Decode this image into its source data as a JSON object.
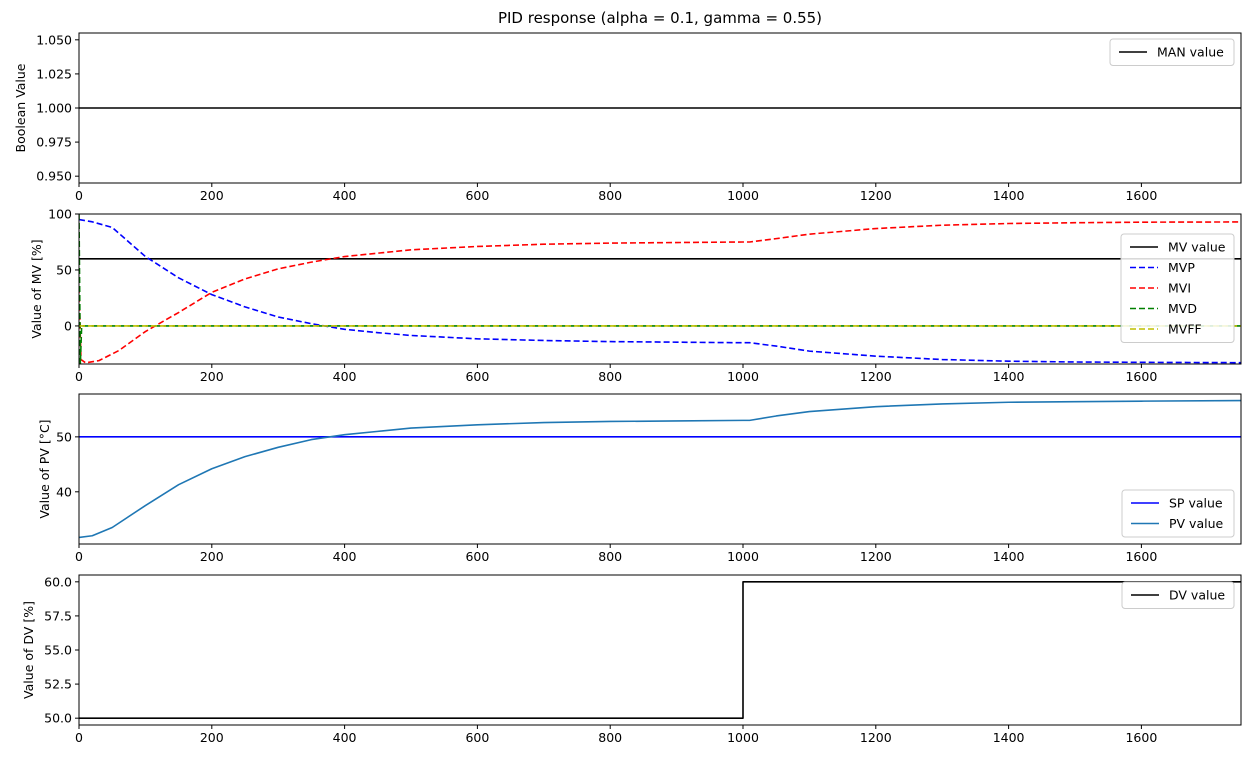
{
  "title": "PID response (alpha = 0.1, gamma = 0.55)",
  "colors": {
    "black": "#000000",
    "blue": "#0000ff",
    "red": "#ff0000",
    "green": "#008000",
    "yellow": "#bfbf00",
    "tab_blue": "#1f77b4"
  },
  "chart_data": [
    {
      "type": "line",
      "ylabel": "Boolean Value",
      "xlim": [
        0,
        1750
      ],
      "ylim": [
        0.945,
        1.055
      ],
      "xticks": [
        0,
        200,
        400,
        600,
        800,
        1000,
        1200,
        1400,
        1600
      ],
      "yticks": [
        0.95,
        0.975,
        1.0,
        1.025,
        1.05
      ],
      "ytick_labels": [
        "0.950",
        "0.975",
        "1.000",
        "1.025",
        "1.050"
      ],
      "legend_loc": "top-right",
      "series": [
        {
          "name": "MAN value",
          "color": "#000000",
          "dash": "solid",
          "points": [
            [
              0,
              1.0
            ],
            [
              1750,
              1.0
            ]
          ]
        }
      ]
    },
    {
      "type": "line",
      "ylabel": "Value of MV [%]",
      "xlim": [
        0,
        1750
      ],
      "ylim": [
        -34,
        100
      ],
      "xticks": [
        0,
        200,
        400,
        600,
        800,
        1000,
        1200,
        1400,
        1600
      ],
      "yticks": [
        0,
        50,
        100
      ],
      "ytick_labels": [
        "0",
        "50",
        "100"
      ],
      "legend_loc": "right",
      "series": [
        {
          "name": "MV value",
          "color": "#000000",
          "dash": "solid",
          "points": [
            [
              0,
              60
            ],
            [
              1750,
              60
            ]
          ]
        },
        {
          "name": "MVP",
          "color": "#0000ff",
          "dash": "dashed",
          "points": [
            [
              0,
              95
            ],
            [
              20,
              93
            ],
            [
              50,
              88
            ],
            [
              100,
              62
            ],
            [
              150,
              43
            ],
            [
              200,
              28
            ],
            [
              250,
              17
            ],
            [
              300,
              8
            ],
            [
              350,
              2
            ],
            [
              400,
              -3
            ],
            [
              450,
              -6
            ],
            [
              500,
              -8.5
            ],
            [
              600,
              -11.5
            ],
            [
              700,
              -13
            ],
            [
              800,
              -14
            ],
            [
              900,
              -14.5
            ],
            [
              1000,
              -15
            ],
            [
              1010,
              -15
            ],
            [
              1050,
              -18
            ],
            [
              1100,
              -22.5
            ],
            [
              1200,
              -27
            ],
            [
              1300,
              -30
            ],
            [
              1400,
              -31.5
            ],
            [
              1500,
              -32.2
            ],
            [
              1600,
              -32.5
            ],
            [
              1750,
              -32.8
            ]
          ]
        },
        {
          "name": "MVI",
          "color": "#ff0000",
          "dash": "dashed",
          "points": [
            [
              0,
              35
            ],
            [
              3,
              -30
            ],
            [
              10,
              -33
            ],
            [
              30,
              -31
            ],
            [
              60,
              -22
            ],
            [
              100,
              -5
            ],
            [
              150,
              12
            ],
            [
              200,
              30
            ],
            [
              250,
              42
            ],
            [
              300,
              51
            ],
            [
              350,
              57
            ],
            [
              400,
              62
            ],
            [
              450,
              65
            ],
            [
              500,
              68
            ],
            [
              600,
              71
            ],
            [
              700,
              73
            ],
            [
              800,
              74
            ],
            [
              900,
              74.5
            ],
            [
              1000,
              75
            ],
            [
              1010,
              75
            ],
            [
              1050,
              78
            ],
            [
              1100,
              82
            ],
            [
              1200,
              87
            ],
            [
              1300,
              90
            ],
            [
              1400,
              91.5
            ],
            [
              1500,
              92.2
            ],
            [
              1600,
              92.7
            ],
            [
              1750,
              92.9
            ]
          ]
        },
        {
          "name": "MVD",
          "color": "#008000",
          "dash": "dashed",
          "points": [
            [
              0,
              100
            ],
            [
              2,
              -34
            ],
            [
              4,
              0
            ],
            [
              1750,
              0
            ]
          ]
        },
        {
          "name": "MVFF",
          "color": "#bfbf00",
          "dash": "dashed",
          "points": [
            [
              0,
              0
            ],
            [
              1750,
              0
            ]
          ]
        }
      ]
    },
    {
      "type": "line",
      "ylabel": "Value of PV [°C]",
      "xlim": [
        0,
        1750
      ],
      "ylim": [
        30.5,
        57.8
      ],
      "xticks": [
        0,
        200,
        400,
        600,
        800,
        1000,
        1200,
        1400,
        1600
      ],
      "yticks": [
        40,
        50
      ],
      "ytick_labels": [
        "40",
        "50"
      ],
      "legend_loc": "bottom-right",
      "series": [
        {
          "name": "SP value",
          "color": "#0000ff",
          "dash": "solid",
          "points": [
            [
              0,
              50
            ],
            [
              1750,
              50
            ]
          ]
        },
        {
          "name": "PV value",
          "color": "#1f77b4",
          "dash": "solid",
          "points": [
            [
              0,
              31.7
            ],
            [
              20,
              32
            ],
            [
              50,
              33.5
            ],
            [
              100,
              37.5
            ],
            [
              150,
              41.3
            ],
            [
              200,
              44.2
            ],
            [
              250,
              46.4
            ],
            [
              300,
              48.1
            ],
            [
              350,
              49.5
            ],
            [
              400,
              50.4
            ],
            [
              450,
              51
            ],
            [
              500,
              51.6
            ],
            [
              600,
              52.2
            ],
            [
              700,
              52.6
            ],
            [
              800,
              52.8
            ],
            [
              900,
              52.9
            ],
            [
              1000,
              53
            ],
            [
              1010,
              53
            ],
            [
              1050,
              53.8
            ],
            [
              1100,
              54.6
            ],
            [
              1200,
              55.5
            ],
            [
              1300,
              56
            ],
            [
              1400,
              56.3
            ],
            [
              1500,
              56.4
            ],
            [
              1600,
              56.5
            ],
            [
              1750,
              56.6
            ]
          ]
        }
      ]
    },
    {
      "type": "line",
      "ylabel": "Value of DV [%]",
      "xlim": [
        0,
        1750
      ],
      "ylim": [
        49.5,
        60.5
      ],
      "xticks": [
        0,
        200,
        400,
        600,
        800,
        1000,
        1200,
        1400,
        1600
      ],
      "yticks": [
        50,
        52.5,
        55,
        57.5,
        60
      ],
      "ytick_labels": [
        "50.0",
        "52.5",
        "55.0",
        "57.5",
        "60.0"
      ],
      "legend_loc": "top-right",
      "series": [
        {
          "name": "DV value",
          "color": "#000000",
          "dash": "solid",
          "points": [
            [
              0,
              50
            ],
            [
              1000,
              50
            ],
            [
              1000,
              60
            ],
            [
              1750,
              60
            ]
          ]
        }
      ]
    }
  ]
}
